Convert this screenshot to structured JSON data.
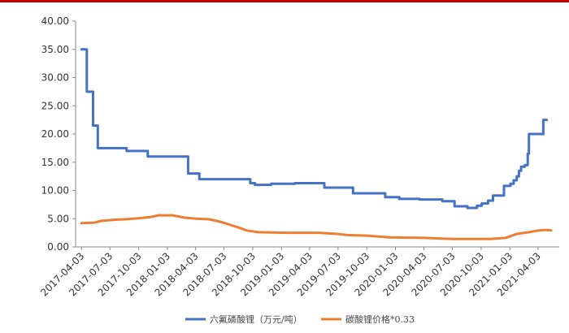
{
  "chart_data": {
    "type": "line",
    "title": "",
    "xlabel": "",
    "ylabel": "",
    "ylim": [
      0,
      40
    ],
    "yticks": [
      0,
      5,
      10,
      15,
      20,
      25,
      30,
      35,
      40
    ],
    "ytick_labels": [
      "0.00",
      "5.00",
      "10.00",
      "15.00",
      "20.00",
      "25.00",
      "30.00",
      "35.00",
      "40.00"
    ],
    "xlim": [
      "2017-03-15",
      "2021-06-10"
    ],
    "xticks": [
      "2017-04-03",
      "2017-07-03",
      "2017-10-03",
      "2018-01-03",
      "2018-04-03",
      "2018-07-03",
      "2018-10-03",
      "2019-01-03",
      "2019-04-03",
      "2019-07-03",
      "2019-10-03",
      "2020-01-03",
      "2020-04-03",
      "2020-07-03",
      "2020-10-03",
      "2021-01-03",
      "2021-04-03"
    ],
    "grid": false,
    "legend_position": "bottom",
    "series": [
      {
        "name": "六氟磷酸锂（万元/吨）",
        "color": "#4472c4",
        "step": true,
        "points": [
          [
            "2017-04-03",
            35.0
          ],
          [
            "2017-04-20",
            27.5
          ],
          [
            "2017-05-10",
            21.5
          ],
          [
            "2017-05-25",
            17.5
          ],
          [
            "2017-08-25",
            17.0
          ],
          [
            "2017-11-01",
            16.0
          ],
          [
            "2018-03-10",
            13.0
          ],
          [
            "2018-04-15",
            12.0
          ],
          [
            "2018-09-25",
            11.3
          ],
          [
            "2018-10-10",
            11.0
          ],
          [
            "2018-12-01",
            11.2
          ],
          [
            "2019-02-15",
            11.3
          ],
          [
            "2019-05-20",
            10.5
          ],
          [
            "2019-08-20",
            9.5
          ],
          [
            "2019-12-01",
            8.8
          ],
          [
            "2020-01-15",
            8.5
          ],
          [
            "2020-03-20",
            8.4
          ],
          [
            "2020-06-01",
            8.1
          ],
          [
            "2020-07-10",
            7.2
          ],
          [
            "2020-08-20",
            6.9
          ],
          [
            "2020-09-20",
            7.3
          ],
          [
            "2020-10-05",
            7.7
          ],
          [
            "2020-10-25",
            8.2
          ],
          [
            "2020-11-10",
            9.1
          ],
          [
            "2020-12-15",
            10.8
          ],
          [
            "2021-01-05",
            11.2
          ],
          [
            "2021-01-15",
            11.8
          ],
          [
            "2021-01-25",
            12.5
          ],
          [
            "2021-02-01",
            13.5
          ],
          [
            "2021-02-08",
            14.2
          ],
          [
            "2021-02-20",
            14.5
          ],
          [
            "2021-03-01",
            16.5
          ],
          [
            "2021-03-05",
            20.0
          ],
          [
            "2021-04-20",
            22.5
          ],
          [
            "2021-05-01",
            22.5
          ]
        ]
      },
      {
        "name": "碳酸锂价格*0.33",
        "color": "#ed7d31",
        "step": false,
        "points": [
          [
            "2017-04-03",
            4.2
          ],
          [
            "2017-05-15",
            4.3
          ],
          [
            "2017-06-05",
            4.6
          ],
          [
            "2017-07-15",
            4.8
          ],
          [
            "2017-08-25",
            4.9
          ],
          [
            "2017-10-05",
            5.1
          ],
          [
            "2017-11-10",
            5.3
          ],
          [
            "2017-12-05",
            5.6
          ],
          [
            "2018-01-20",
            5.6
          ],
          [
            "2018-02-25",
            5.2
          ],
          [
            "2018-04-05",
            5.0
          ],
          [
            "2018-05-15",
            4.9
          ],
          [
            "2018-06-25",
            4.4
          ],
          [
            "2018-08-15",
            3.5
          ],
          [
            "2018-09-15",
            2.9
          ],
          [
            "2018-10-20",
            2.6
          ],
          [
            "2019-01-20",
            2.5
          ],
          [
            "2019-05-01",
            2.5
          ],
          [
            "2019-07-01",
            2.3
          ],
          [
            "2019-08-01",
            2.1
          ],
          [
            "2019-10-03",
            2.0
          ],
          [
            "2019-12-15",
            1.7
          ],
          [
            "2020-04-03",
            1.6
          ],
          [
            "2020-07-03",
            1.4
          ],
          [
            "2020-11-01",
            1.4
          ],
          [
            "2020-12-20",
            1.6
          ],
          [
            "2021-01-25",
            2.3
          ],
          [
            "2021-03-05",
            2.6
          ],
          [
            "2021-04-03",
            2.9
          ],
          [
            "2021-05-01",
            3.0
          ],
          [
            "2021-05-15",
            2.9
          ]
        ]
      }
    ]
  }
}
